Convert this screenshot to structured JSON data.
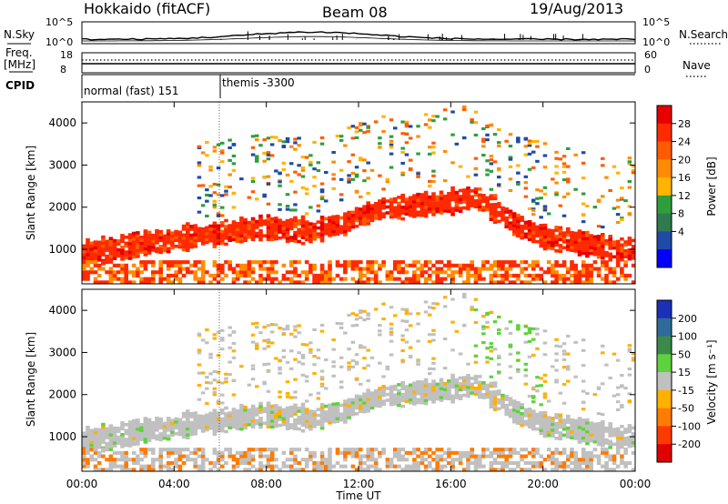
{
  "header": {
    "site": "Hokkaido (fitACF)",
    "beam": "Beam 08",
    "date": "19/Aug/2013"
  },
  "noise_panel": {
    "left_label": "N.Sky",
    "right_label": "N.Search",
    "left_ticks": [
      "10^5",
      "10^0"
    ],
    "right_ticks": [
      "10^5",
      "10^0"
    ]
  },
  "freq_panel": {
    "left_label_line1": "Freq.",
    "left_label_line2": "[MHz]",
    "left_ticks": [
      "18",
      "8"
    ],
    "right_label": "Nave",
    "right_ticks": [
      "60",
      "0"
    ]
  },
  "cpid": {
    "label": "CPID",
    "modes": [
      {
        "name": "normal (fast) 151",
        "start_hour": 0
      },
      {
        "name": "themis -3300",
        "start_hour": 6
      }
    ]
  },
  "panels": {
    "power": {
      "ylabel": "Slant Range [km]",
      "cbar_label": "Power [dB]",
      "cbar_ticks": [
        "28",
        "24",
        "20",
        "16",
        "12",
        "8",
        "4"
      ],
      "cbar_colors": [
        "#e80000",
        "#ff2a00",
        "#ff5c00",
        "#ff8c00",
        "#ffb400",
        "#2e9e3c",
        "#2f7a50",
        "#1f4aa8",
        "#0000ff"
      ]
    },
    "velocity": {
      "ylabel": "Slant Range [km]",
      "cbar_label": "Velocity [m s⁻¹]",
      "cbar_ticks": [
        "200",
        "100",
        "50",
        "15",
        "-15",
        "-50",
        "-100",
        "-200"
      ],
      "cbar_colors": [
        "#1c2fb8",
        "#2d6b98",
        "#3b8a4a",
        "#5ed23c",
        "#c0c0c0",
        "#ffb000",
        "#ff7c00",
        "#ff3a00",
        "#e00000"
      ]
    }
  },
  "xaxis": {
    "label": "Time UT",
    "ticks": [
      "00:00",
      "04:00",
      "08:00",
      "12:00",
      "16:00",
      "20:00",
      "00:00"
    ]
  },
  "chart_data": {
    "type": "heatmap",
    "title": "Hokkaido (fitACF)  Beam 08  19/Aug/2013",
    "xlabel": "Time UT",
    "ylabel": "Slant Range [km]",
    "xlim": [
      "00:00",
      "24:00"
    ],
    "ylim": [
      180,
      4500
    ],
    "y_ticks": [
      1000,
      2000,
      3000,
      4000
    ],
    "power_scale_db": [
      0,
      32
    ],
    "velocity_scale_ms": [
      -250,
      250
    ],
    "power_band_range_km": [
      [
        0,
        900
      ],
      [
        1,
        950
      ],
      [
        2,
        1050
      ],
      [
        3,
        1150
      ],
      [
        4,
        1200
      ],
      [
        5,
        1300
      ],
      [
        6,
        1350
      ],
      [
        7,
        1450
      ],
      [
        8,
        1500
      ],
      [
        9,
        1450
      ],
      [
        10,
        1400
      ],
      [
        11,
        1550
      ],
      [
        12,
        1750
      ],
      [
        13,
        1950
      ],
      [
        14,
        2000
      ],
      [
        15,
        2050
      ],
      [
        16,
        2100
      ],
      [
        17,
        2250
      ],
      [
        18,
        1900
      ],
      [
        19,
        1500
      ],
      [
        20,
        1300
      ],
      [
        21,
        1200
      ],
      [
        22,
        1100
      ],
      [
        23,
        1000
      ],
      [
        24,
        1000
      ]
    ]
  }
}
